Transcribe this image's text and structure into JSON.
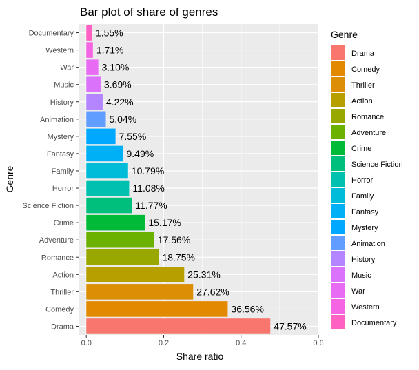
{
  "chart_data": {
    "type": "bar",
    "orientation": "horizontal",
    "title": "Bar plot of share of genres",
    "xlabel": "Share ratio",
    "ylabel": "Genre",
    "xlim": [
      -0.02,
      0.6
    ],
    "xticks": [
      "0.0",
      "0.2",
      "0.4",
      "0.6"
    ],
    "xtick_values": [
      0,
      0.2,
      0.4,
      0.6
    ],
    "grid": true,
    "legend_position": "right",
    "categories": [
      "Drama",
      "Comedy",
      "Thriller",
      "Action",
      "Romance",
      "Adventure",
      "Crime",
      "Science Fiction",
      "Horror",
      "Family",
      "Fantasy",
      "Mystery",
      "Animation",
      "History",
      "Music",
      "War",
      "Western",
      "Documentary"
    ],
    "values": [
      0.4757,
      0.3656,
      0.2762,
      0.2531,
      0.1875,
      0.1756,
      0.1517,
      0.1177,
      0.1108,
      0.1079,
      0.0949,
      0.0755,
      0.0504,
      0.0422,
      0.0369,
      0.031,
      0.0171,
      0.0155
    ],
    "labels": [
      "47.57%",
      "36.56%",
      "27.62%",
      "25.31%",
      "18.75%",
      "17.56%",
      "15.17%",
      "11.77%",
      "11.08%",
      "10.79%",
      "9.49%",
      "7.55%",
      "5.04%",
      "4.22%",
      "3.69%",
      "3.10%",
      "1.71%",
      "1.55%"
    ],
    "colors": [
      "#F8766D",
      "#E38900",
      "#DC8E06",
      "#B79F00",
      "#99A800",
      "#6BB100",
      "#00BA38",
      "#00BF7D",
      "#00C0AF",
      "#00BCD8",
      "#00B0F6",
      "#00A8FF",
      "#619CFF",
      "#B385FF",
      "#DB72FB",
      "#E76BF3",
      "#F564E3",
      "#FF61C3"
    ],
    "legend_title": "Genre"
  }
}
